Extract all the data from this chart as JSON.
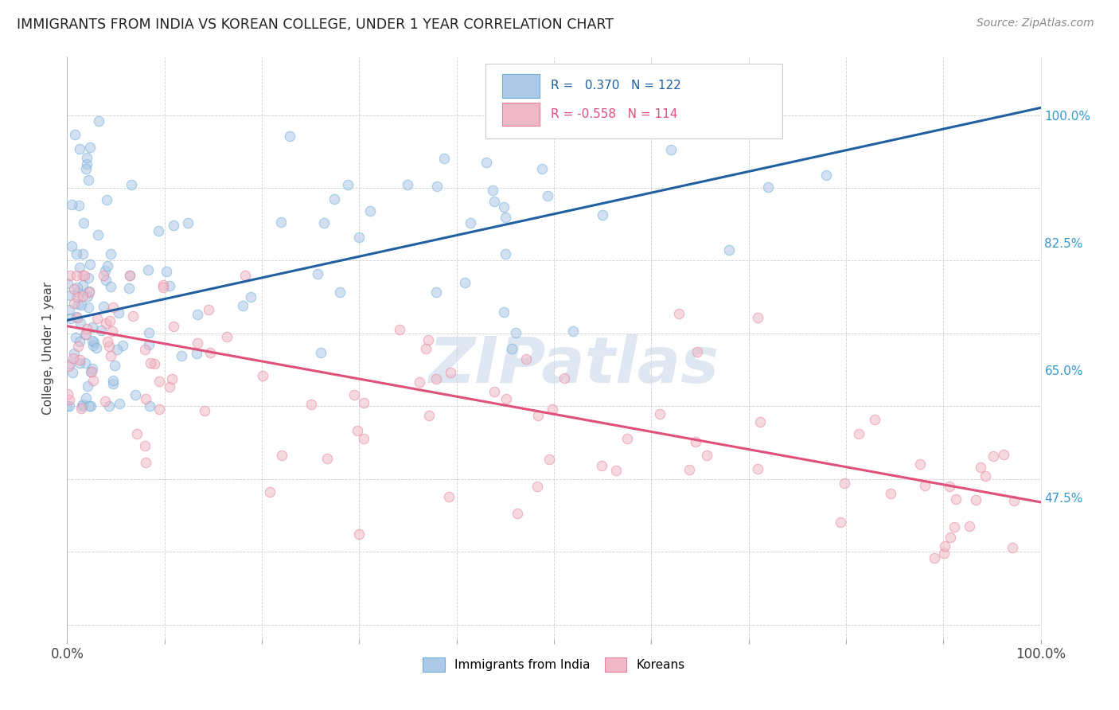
{
  "title": "IMMIGRANTS FROM INDIA VS KOREAN COLLEGE, UNDER 1 YEAR CORRELATION CHART",
  "source": "Source: ZipAtlas.com",
  "ylabel": "College, Under 1 year",
  "right_yticks": [
    "100.0%",
    "82.5%",
    "65.0%",
    "47.5%"
  ],
  "right_ytick_vals": [
    1.0,
    0.825,
    0.65,
    0.475
  ],
  "watermark": "ZIPatlas",
  "background_color": "#ffffff",
  "scatter_alpha": 0.55,
  "scatter_size": 80,
  "blue_color": "#6baed6",
  "blue_fill": "#aec8e8",
  "pink_color": "#e8829a",
  "pink_fill": "#f0b8c8",
  "blue_line_color": "#2060a0",
  "pink_line_color": "#e0507a",
  "grid_color": "#bbbbbb",
  "xlim": [
    0.0,
    1.0
  ],
  "ylim": [
    0.28,
    1.08
  ],
  "blue_line_y0": 0.718,
  "blue_line_y1": 1.01,
  "pink_line_y0": 0.71,
  "pink_line_y1": 0.468,
  "legend_r_blue": "R =   0.370",
  "legend_n_blue": "N = 122",
  "legend_r_pink": "R = -0.558",
  "legend_n_pink": "N = 114",
  "legend_label_blue": "Immigrants from India",
  "legend_label_pink": "Koreans"
}
